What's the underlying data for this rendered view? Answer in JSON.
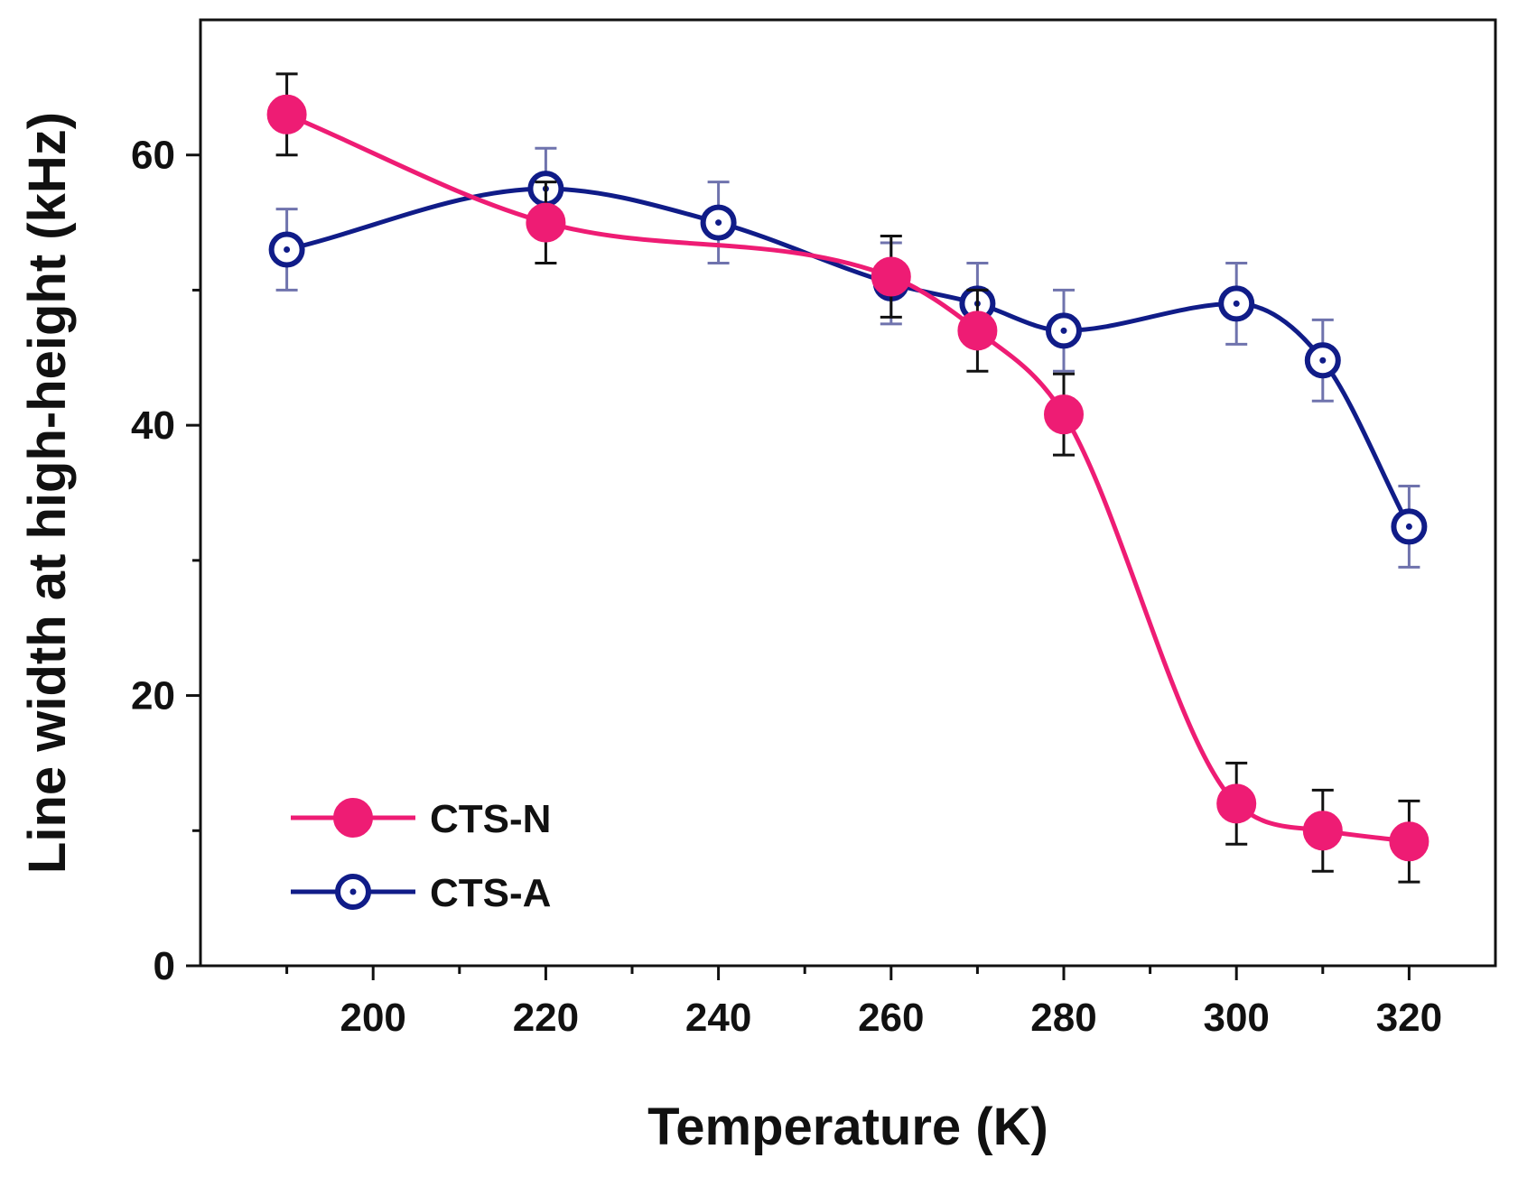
{
  "chart_data": {
    "type": "line",
    "title": "",
    "xlabel": "Temperature (K)",
    "ylabel": "Line width at high-height (kHz)",
    "xlim": [
      180,
      330
    ],
    "ylim": [
      0,
      70
    ],
    "xticks": [
      200,
      220,
      240,
      260,
      280,
      300,
      320
    ],
    "xtick_labels": [
      "200",
      "220",
      "240",
      "260",
      "280",
      "300",
      "320"
    ],
    "yticks": [
      0,
      20,
      40,
      60
    ],
    "ytick_labels": [
      "0",
      "20",
      "40",
      "60"
    ],
    "grid": false,
    "legend_position": "bottom-left",
    "series": [
      {
        "name": "CTS-N",
        "color": "#EE1C74",
        "marker": "filled-circle",
        "x": [
          190,
          220,
          260,
          270,
          280,
          300,
          310,
          320
        ],
        "y": [
          63,
          55,
          51,
          47,
          40.8,
          12,
          10,
          9.2
        ],
        "error": [
          3,
          3,
          3,
          3,
          3,
          3,
          3,
          3
        ]
      },
      {
        "name": "CTS-A",
        "color": "#101C88",
        "marker": "open-circle-dot",
        "x": [
          190,
          220,
          240,
          260,
          270,
          280,
          300,
          310,
          320
        ],
        "y": [
          53,
          57.5,
          55,
          50.5,
          49,
          47,
          49,
          44.8,
          32.5
        ],
        "error": [
          3,
          3,
          3,
          3,
          3,
          3,
          3,
          3,
          3
        ]
      }
    ]
  }
}
